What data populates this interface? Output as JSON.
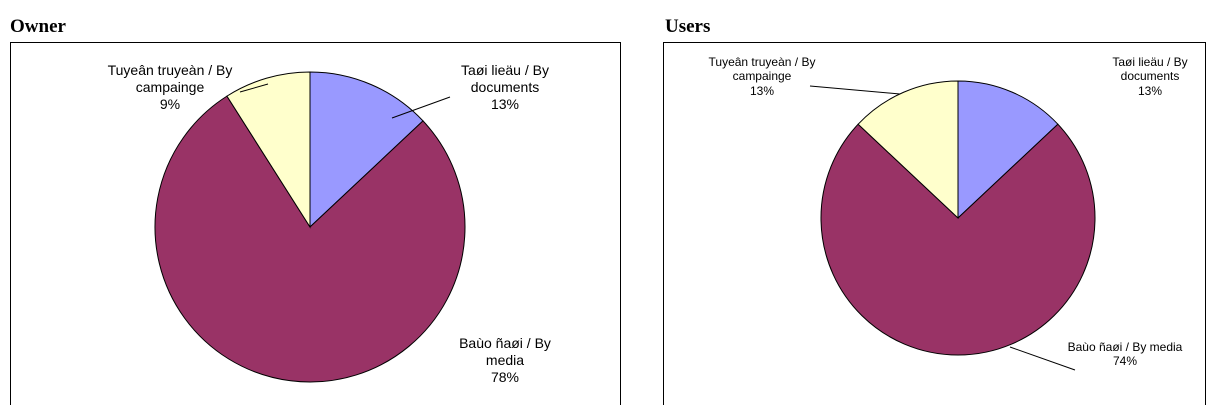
{
  "chart_data": [
    {
      "type": "pie",
      "title": "Owner",
      "categories": [
        "Taøi lieäu / By documents",
        "Baùo ñaøi / By media",
        "Tuyeân truyeàn / By campainge"
      ],
      "values": [
        13,
        78,
        9
      ],
      "value_labels": [
        "13%",
        "78%",
        "9%"
      ],
      "colors": [
        "#9999ff",
        "#993366",
        "#ffffcc"
      ]
    },
    {
      "type": "pie",
      "title": "Users",
      "categories": [
        "Taøi lieäu / By documents",
        "Baùo ñaøi / By media",
        "Tuyeân truyeàn / By campainge"
      ],
      "values": [
        13,
        74,
        13
      ],
      "value_labels": [
        "13%",
        "74%",
        "13%"
      ],
      "colors": [
        "#9999ff",
        "#993366",
        "#ffffcc"
      ]
    }
  ]
}
